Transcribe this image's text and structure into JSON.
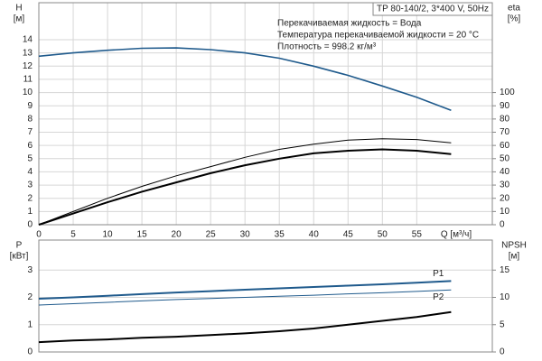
{
  "chart_data": [
    {
      "type": "line",
      "title": "TP 80-140/2, 3*400 V, 50Hz",
      "annotations": [
        "Перекачиваемая жидкость = Вода",
        "Температура перекачиваемой жидкости = 20 °C",
        "Плотность = 998.2 кг/м³"
      ],
      "ylabel": "H",
      "ylabel_unit": "[м]",
      "y2label": "eta",
      "y2label_unit": "[%]",
      "xlabel": "Q [м³/ч]",
      "x": [
        0,
        5,
        10,
        15,
        20,
        25,
        30,
        35,
        40,
        45,
        50,
        55,
        60
      ],
      "xlim": [
        0,
        66
      ],
      "xticks": [
        0,
        5,
        10,
        15,
        20,
        25,
        30,
        35,
        40,
        45,
        50,
        55
      ],
      "ylim": [
        0,
        16.8
      ],
      "yticks": [
        0,
        1,
        2,
        3,
        4,
        5,
        6,
        7,
        8,
        9,
        10,
        11,
        12,
        13,
        14
      ],
      "y2lim": [
        0,
        168
      ],
      "y2ticks": [
        0,
        10,
        20,
        30,
        40,
        50,
        60,
        70,
        80,
        90,
        100
      ],
      "grid": true,
      "series": [
        {
          "color": "#1f5a8c",
          "linewidth": 1.6,
          "values": [
            12.75,
            13.0,
            13.2,
            13.35,
            13.38,
            13.25,
            13.0,
            12.6,
            12.0,
            11.3,
            10.5,
            9.65,
            8.65
          ]
        },
        {
          "color": "#000000",
          "linewidth": 1,
          "axis": "y2",
          "values": [
            0,
            10,
            20,
            29,
            37,
            44,
            51,
            57,
            61,
            64,
            65,
            64.5,
            62
          ]
        },
        {
          "color": "#000000",
          "linewidth": 2,
          "axis": "y2",
          "values": [
            0,
            8.5,
            17,
            25,
            32,
            39,
            45,
            50,
            54,
            56,
            57,
            56,
            53.5
          ]
        }
      ]
    },
    {
      "type": "line",
      "ylabel": "P",
      "ylabel_unit": "[кВт]",
      "y2label": "NPSH",
      "y2label_unit": "[м]",
      "x": [
        0,
        5,
        10,
        15,
        20,
        25,
        30,
        35,
        40,
        45,
        50,
        55,
        60
      ],
      "xlim": [
        0,
        66
      ],
      "ylim": [
        0,
        4.1
      ],
      "yticks": [
        0,
        1,
        2,
        3
      ],
      "y2lim": [
        0,
        20.5
      ],
      "y2ticks": [
        0,
        5,
        10,
        15
      ],
      "grid": true,
      "series": [
        {
          "name": "P1",
          "color": "#1f5a8c",
          "linewidth": 2,
          "values": [
            1.95,
            2.0,
            2.06,
            2.12,
            2.18,
            2.23,
            2.28,
            2.33,
            2.38,
            2.43,
            2.48,
            2.54,
            2.6
          ]
        },
        {
          "name": "P2",
          "color": "#1f5a8c",
          "linewidth": 1,
          "values": [
            1.72,
            1.77,
            1.82,
            1.87,
            1.92,
            1.96,
            2.0,
            2.04,
            2.08,
            2.13,
            2.17,
            2.22,
            2.27
          ]
        },
        {
          "color": "#000000",
          "linewidth": 2,
          "axis": "y2",
          "values": [
            1.8,
            2.1,
            2.3,
            2.6,
            2.8,
            3.1,
            3.4,
            3.8,
            4.3,
            5.0,
            5.7,
            6.4,
            7.3
          ]
        }
      ]
    }
  ]
}
